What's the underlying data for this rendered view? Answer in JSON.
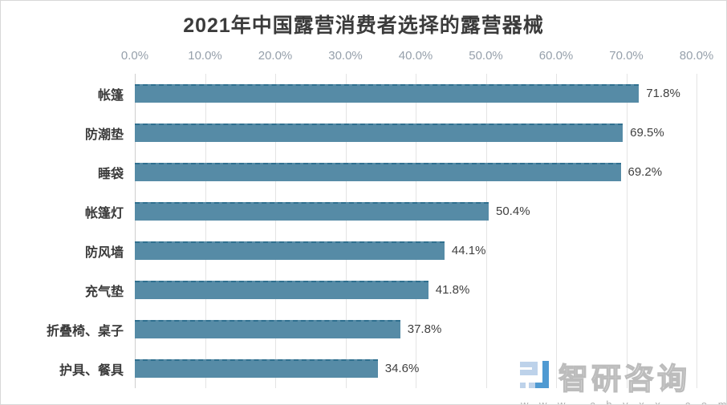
{
  "title": "2021年中国露营消费者选择的露营器械",
  "chart_data": {
    "type": "bar",
    "orientation": "horizontal",
    "title": "2021年中国露营消费者选择的露营器械",
    "categories": [
      "帐篷",
      "防潮垫",
      "睡袋",
      "帐篷灯",
      "防风墙",
      "充气垫",
      "折叠椅、桌子",
      "护具、餐具"
    ],
    "values": [
      71.8,
      69.5,
      69.2,
      50.4,
      44.1,
      41.8,
      37.8,
      34.6
    ],
    "value_labels": [
      "71.8%",
      "69.5%",
      "69.2%",
      "50.4%",
      "44.1%",
      "41.8%",
      "37.8%",
      "34.6%"
    ],
    "xlabel": "",
    "ylabel": "",
    "xlim": [
      0,
      80
    ],
    "x_ticks": [
      "0.0%",
      "10.0%",
      "20.0%",
      "30.0%",
      "40.0%",
      "50.0%",
      "60.0%",
      "70.0%",
      "80.0%"
    ],
    "grid": "vertical-only",
    "bar_color": "#568ba6",
    "legend": "none"
  },
  "watermark": {
    "brand": "智研咨询",
    "url": "w w w . c h v x x . c o m",
    "logo": "zhiyan-logo",
    "logo_color_light": "#bdd2ea",
    "logo_color_dark": "#4f9ad2"
  }
}
